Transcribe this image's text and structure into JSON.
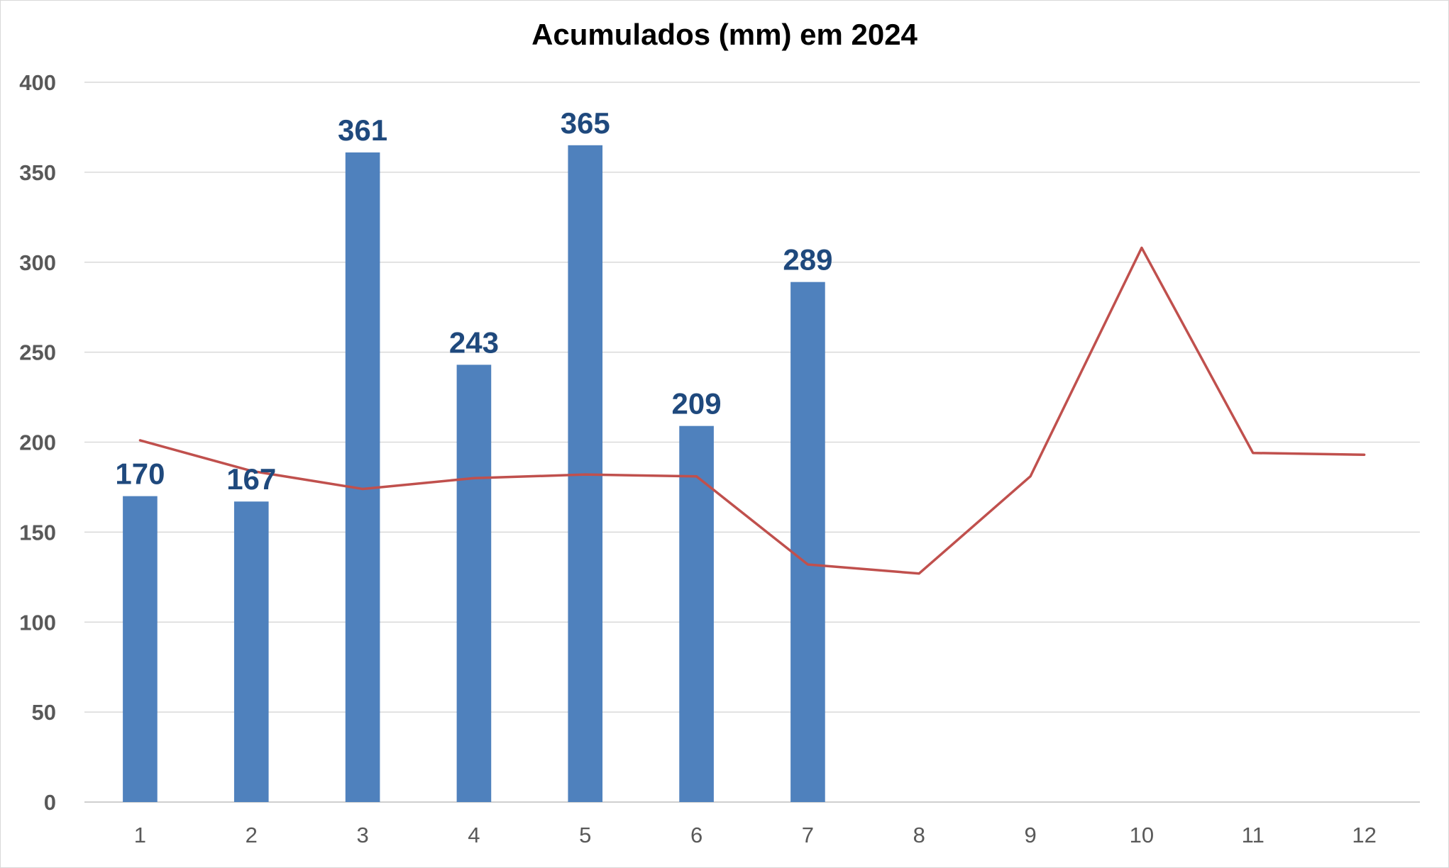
{
  "chart_data": {
    "type": "bar",
    "title": "Acumulados (mm) em 2024",
    "xlabel": "",
    "ylabel": "",
    "categories": [
      "1",
      "2",
      "3",
      "4",
      "5",
      "6",
      "7",
      "8",
      "9",
      "10",
      "11",
      "12"
    ],
    "ylim": [
      0,
      400
    ],
    "yticks": [
      "0",
      "50",
      "100",
      "150",
      "200",
      "250",
      "300",
      "350",
      "400"
    ],
    "grid": true,
    "legend": "none",
    "series": [
      {
        "type": "bar",
        "color": "#4f81bd",
        "label_color": "#1f497d",
        "values": [
          170,
          167,
          361,
          243,
          365,
          209,
          289,
          null,
          null,
          null,
          null,
          null
        ],
        "data_labels": [
          "170",
          "167",
          "361",
          "243",
          "365",
          "209",
          "289",
          "",
          "",
          "",
          "",
          ""
        ]
      },
      {
        "type": "line",
        "color": "#c0504d",
        "values": [
          201,
          184,
          174,
          180,
          182,
          181,
          132,
          127,
          181,
          308,
          194,
          193
        ]
      }
    ]
  }
}
